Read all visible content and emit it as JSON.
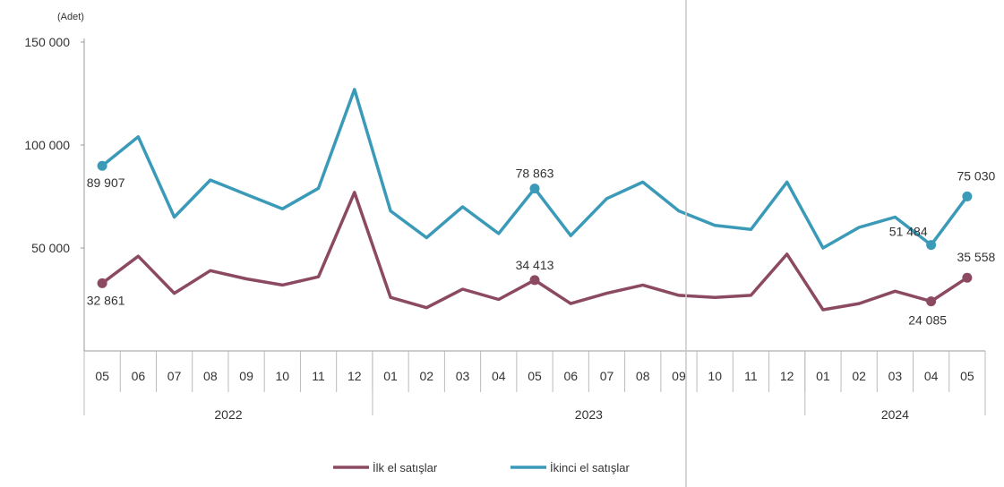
{
  "chart_data": {
    "type": "line",
    "unit_label": "(Adet)",
    "y_ticks": [
      "150 000",
      "100 000",
      "50 000"
    ],
    "y_tick_values": [
      150000,
      100000,
      50000
    ],
    "ylim": [
      0,
      150000
    ],
    "categories": [
      "05",
      "06",
      "07",
      "08",
      "09",
      "10",
      "11",
      "12",
      "01",
      "02",
      "03",
      "04",
      "05",
      "06",
      "07",
      "08",
      "09",
      "10",
      "11",
      "12",
      "01",
      "02",
      "03",
      "04",
      "05"
    ],
    "years": [
      {
        "label": "2022",
        "start": 0,
        "end": 7
      },
      {
        "label": "2023",
        "start": 8,
        "end": 19
      },
      {
        "label": "2024",
        "start": 20,
        "end": 24
      }
    ],
    "series": [
      {
        "name": "İlk el satışlar",
        "color": "#8b4a62",
        "values": [
          32861,
          46000,
          28000,
          39000,
          35000,
          32000,
          36000,
          77000,
          26000,
          21000,
          30000,
          25000,
          34413,
          23000,
          28000,
          32000,
          27000,
          26000,
          27000,
          47000,
          20000,
          23000,
          29000,
          24085,
          35558
        ],
        "markers": [
          0,
          12,
          23,
          24
        ]
      },
      {
        "name": "İkinci el satışlar",
        "color": "#3a9ab8",
        "values": [
          89907,
          104000,
          65000,
          83000,
          76000,
          69000,
          79000,
          127000,
          68000,
          55000,
          70000,
          57000,
          78863,
          56000,
          74000,
          82000,
          68000,
          61000,
          59000,
          82000,
          50000,
          60000,
          65000,
          51484,
          75030
        ],
        "markers": [
          0,
          12,
          23,
          24
        ]
      }
    ],
    "data_labels": [
      {
        "series": 0,
        "index": 0,
        "text": "32 861"
      },
      {
        "series": 0,
        "index": 12,
        "text": "34 413"
      },
      {
        "series": 0,
        "index": 23,
        "text": "24 085"
      },
      {
        "series": 0,
        "index": 24,
        "text": "35 558"
      },
      {
        "series": 1,
        "index": 0,
        "text": "89 907"
      },
      {
        "series": 1,
        "index": 12,
        "text": "78 863"
      },
      {
        "series": 1,
        "index": 23,
        "text": "51 484"
      },
      {
        "series": 1,
        "index": 24,
        "text": "75 030"
      }
    ],
    "legend_position": "bottom",
    "grid": false
  }
}
